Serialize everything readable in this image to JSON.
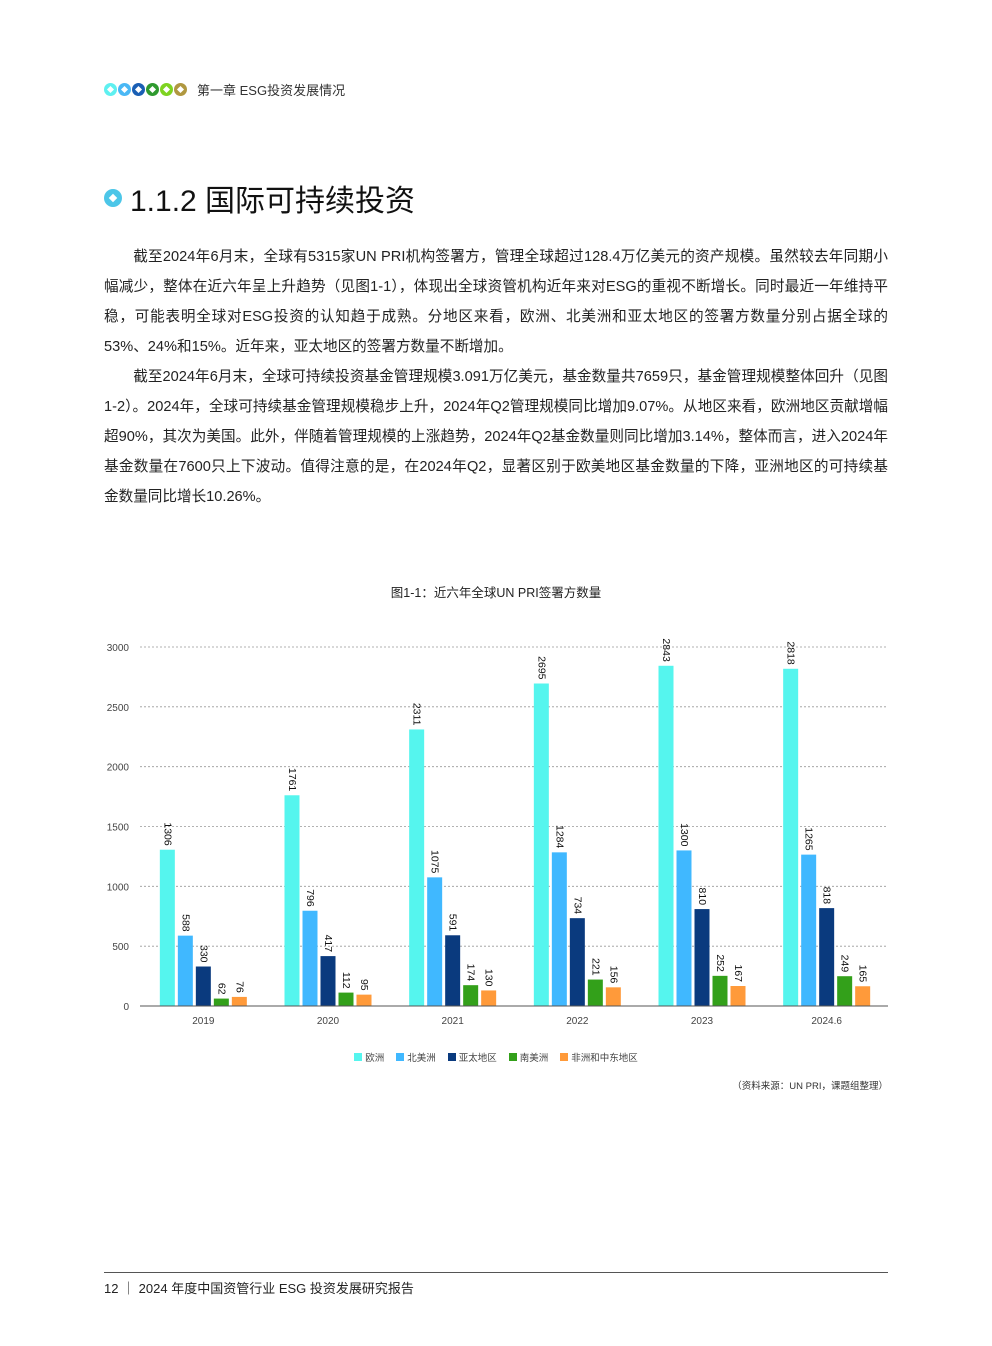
{
  "header": {
    "chapter": "第一章 ESG投资发展情况",
    "dot_colors": [
      "#5ef0f0",
      "#4ab8f5",
      "#1a5fb4",
      "#2f9a2f",
      "#7ed321",
      "#b09840"
    ]
  },
  "section": {
    "title": "1.1.2 国际可持续投资"
  },
  "paragraphs": [
    "截至2024年6月末，全球有5315家UN PRI机构签署方，管理全球超过128.4万亿美元的资产规模。虽然较去年同期小幅减少，整体在近六年呈上升趋势（见图1-1），体现出全球资管机构近年来对ESG的重视不断增长。同时最近一年维持平稳，可能表明全球对ESG投资的认知趋于成熟。分地区来看，欧洲、北美洲和亚太地区的签署方数量分别占据全球的53%、24%和15%。近年来，亚太地区的签署方数量不断增加。",
    "截至2024年6月末，全球可持续投资基金管理规模3.091万亿美元，基金数量共7659只，基金管理规模整体回升（见图1-2）。2024年，全球可持续基金管理规模稳步上升，2024年Q2管理规模同比增加9.07%。从地区来看，欧洲地区贡献增幅超90%，其次为美国。此外，伴随着管理规模的上涨趋势，2024年Q2基金数量则同比增加3.14%，整体而言，进入2024年基金数量在7600只上下波动。值得注意的是，在2024年Q2，显著区别于欧美地区基金数量的下降，亚洲地区的可持续基金数量同比增长10.26%。"
  ],
  "figure": {
    "title": "图1-1：近六年全球UN PRI签署方数量",
    "source": "（资料来源：UN PRI，课题组整理）"
  },
  "chart_data": {
    "type": "bar",
    "title": "图1-1：近六年全球UN PRI签署方数量",
    "categories": [
      "2019",
      "2020",
      "2021",
      "2022",
      "2023",
      "2024.6"
    ],
    "series": [
      {
        "name": "欧洲",
        "color": "#55f5ee",
        "values": [
          1306,
          1761,
          2311,
          2695,
          2843,
          2818
        ]
      },
      {
        "name": "北美洲",
        "color": "#40b8ff",
        "values": [
          588,
          796,
          1075,
          1284,
          1300,
          1265
        ]
      },
      {
        "name": "亚太地区",
        "color": "#0a3a7e",
        "values": [
          330,
          417,
          591,
          734,
          810,
          818
        ]
      },
      {
        "name": "南美洲",
        "color": "#33a01a",
        "values": [
          62,
          112,
          174,
          221,
          252,
          249
        ]
      },
      {
        "name": "非洲和中东地区",
        "color": "#ff9a3a",
        "values": [
          76,
          95,
          130,
          156,
          167,
          165
        ]
      }
    ],
    "yticks": [
      0,
      500,
      1000,
      1500,
      2000,
      2500,
      3000
    ],
    "ylim": [
      0,
      3000
    ],
    "grid": true,
    "legend": "bottom"
  },
  "footer": {
    "text": "12 ｜ 2024 年度中国资管行业 ESG 投资发展研究报告"
  }
}
